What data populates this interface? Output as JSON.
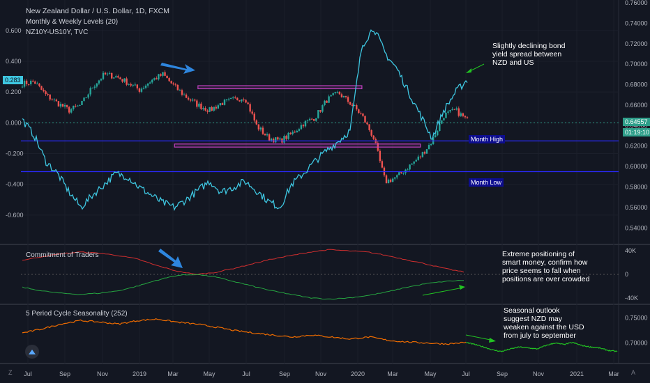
{
  "header": {
    "title": "New Zealand Dollar / U.S. Dollar, 1D, FXCM",
    "indicator1": "Monthly & Weekly Levels (20)",
    "indicator2": "NZ10Y-US10Y, TVC"
  },
  "levels": {
    "month_high": "Month High",
    "month_low": "Month Low"
  },
  "badges": {
    "spread_current": "0.283",
    "price_current": "0.64557",
    "countdown": "01:19:10"
  },
  "annotations": {
    "spread_note": "Slightly declining bond yield spread between NZD and US",
    "cot_note": "Extreme positioning of smart money, confirm how price seems to fall when positions are over crowded",
    "season_note": "Seasonal outlook suggest NZD may weaken against the USD from july to september"
  },
  "panes": {
    "cot_title": "Commitment of Traders",
    "season_title": "5 Period Cycle Seasonality (252)"
  },
  "footer": {
    "left_icon": "Z",
    "right_icon": "A"
  },
  "colors": {
    "background": "#131722",
    "spread_line": "#3ec6e0",
    "candle_up": "#26a69a",
    "candle_down": "#ef5350",
    "cot_long": "#26a641",
    "cot_short": "#d32f2f",
    "seasonality": "#ef6c00",
    "seasonality_projection": "#22c322",
    "level_line": "#2a2aff",
    "box": "#c040c0",
    "arrow": "#2e86de",
    "annotation_arrow": "#22c322"
  },
  "chart_data": [
    {
      "type": "line",
      "name": "main",
      "x_ticks": [
        "Jul",
        "Sep",
        "Nov",
        "2019",
        "Mar",
        "May",
        "Jul",
        "Sep",
        "Nov",
        "2020",
        "Mar",
        "May",
        "Jul",
        "Sep",
        "Nov",
        "2021",
        "Mar"
      ],
      "left_axis": {
        "ticks": [
          "0.600",
          "0.400",
          "0.200",
          "0.000",
          "-0.200",
          "-0.400",
          "-0.600"
        ],
        "ylim": [
          -0.75,
          0.78
        ]
      },
      "right_axis": {
        "ticks": [
          "0.76000",
          "0.74000",
          "0.72000",
          "0.70000",
          "0.68000",
          "0.66000",
          "0.64000",
          "0.62000",
          "0.60000",
          "0.58000",
          "0.56000",
          "0.54000"
        ],
        "ylim": [
          0.53,
          0.76
        ]
      },
      "series": [
        {
          "name": "NZ10Y-US10Y, TVC",
          "values": [
            0.02,
            -0.08,
            -0.25,
            -0.33,
            -0.45,
            -0.55,
            -0.47,
            -0.4,
            -0.33,
            -0.35,
            -0.42,
            -0.47,
            -0.52,
            -0.55,
            -0.5,
            -0.44,
            -0.38,
            -0.45,
            -0.42,
            -0.38,
            -0.44,
            -0.51,
            -0.55,
            -0.4,
            -0.33,
            -0.25,
            -0.18,
            -0.12,
            -0.05,
            0.5,
            0.62,
            0.45,
            0.35,
            0.2,
            0.05,
            -0.1,
            0.08,
            0.2,
            0.28
          ]
        },
        {
          "name": "New Zealand Dollar / U.S. Dollar, 1D, FXCM",
          "values": [
            0.681,
            0.683,
            0.67,
            0.662,
            0.655,
            0.66,
            0.678,
            0.69,
            0.688,
            0.682,
            0.675,
            0.684,
            0.69,
            0.678,
            0.668,
            0.66,
            0.655,
            0.662,
            0.665,
            0.668,
            0.64,
            0.628,
            0.625,
            0.632,
            0.642,
            0.648,
            0.665,
            0.672,
            0.662,
            0.65,
            0.628,
            0.585,
            0.59,
            0.6,
            0.61,
            0.625,
            0.65,
            0.655,
            0.645
          ]
        }
      ],
      "levels": [
        0.625,
        0.595
      ],
      "boxes": [
        {
          "x": [
            15,
            29
          ],
          "y": [
            0.676,
            0.679
          ]
        },
        {
          "x": [
            13,
            34
          ],
          "y": [
            0.619,
            0.622
          ]
        }
      ]
    },
    {
      "type": "line",
      "name": "cot",
      "title": "Commitment of Traders",
      "right_axis": {
        "ticks": [
          "40K",
          "0",
          "-40K"
        ]
      },
      "series": [
        {
          "name": "short",
          "values": [
            24,
            30,
            35,
            38,
            36,
            32,
            26,
            15,
            6,
            0,
            3,
            10,
            18,
            26,
            32,
            38,
            42,
            40,
            38,
            32,
            25,
            18,
            10,
            4
          ]
        },
        {
          "name": "long",
          "values": [
            -22,
            -28,
            -32,
            -34,
            -32,
            -28,
            -20,
            -10,
            -2,
            0,
            -4,
            -12,
            -20,
            -28,
            -34,
            -40,
            -42,
            -40,
            -36,
            -30,
            -22,
            -16,
            -12,
            -10
          ]
        }
      ]
    },
    {
      "type": "line",
      "name": "seasonality",
      "title": "5 Period Cycle Seasonality (252)",
      "right_axis": {
        "ticks": [
          "0.75000",
          "0.70000"
        ]
      },
      "series": [
        {
          "name": "historical",
          "values": [
            0.72,
            0.728,
            0.738,
            0.745,
            0.742,
            0.738,
            0.745,
            0.748,
            0.742,
            0.738,
            0.732,
            0.725,
            0.72,
            0.716,
            0.712,
            0.716,
            0.712,
            0.708,
            0.712,
            0.705,
            0.702,
            0.7,
            0.698,
            0.701
          ]
        },
        {
          "name": "projection",
          "values": [
            0.701,
            0.697,
            0.692,
            0.686,
            0.683,
            0.688,
            0.692,
            0.69,
            0.688,
            0.695,
            0.7,
            0.697,
            0.701,
            0.695,
            0.692,
            0.69,
            0.685,
            0.683
          ]
        }
      ]
    }
  ]
}
